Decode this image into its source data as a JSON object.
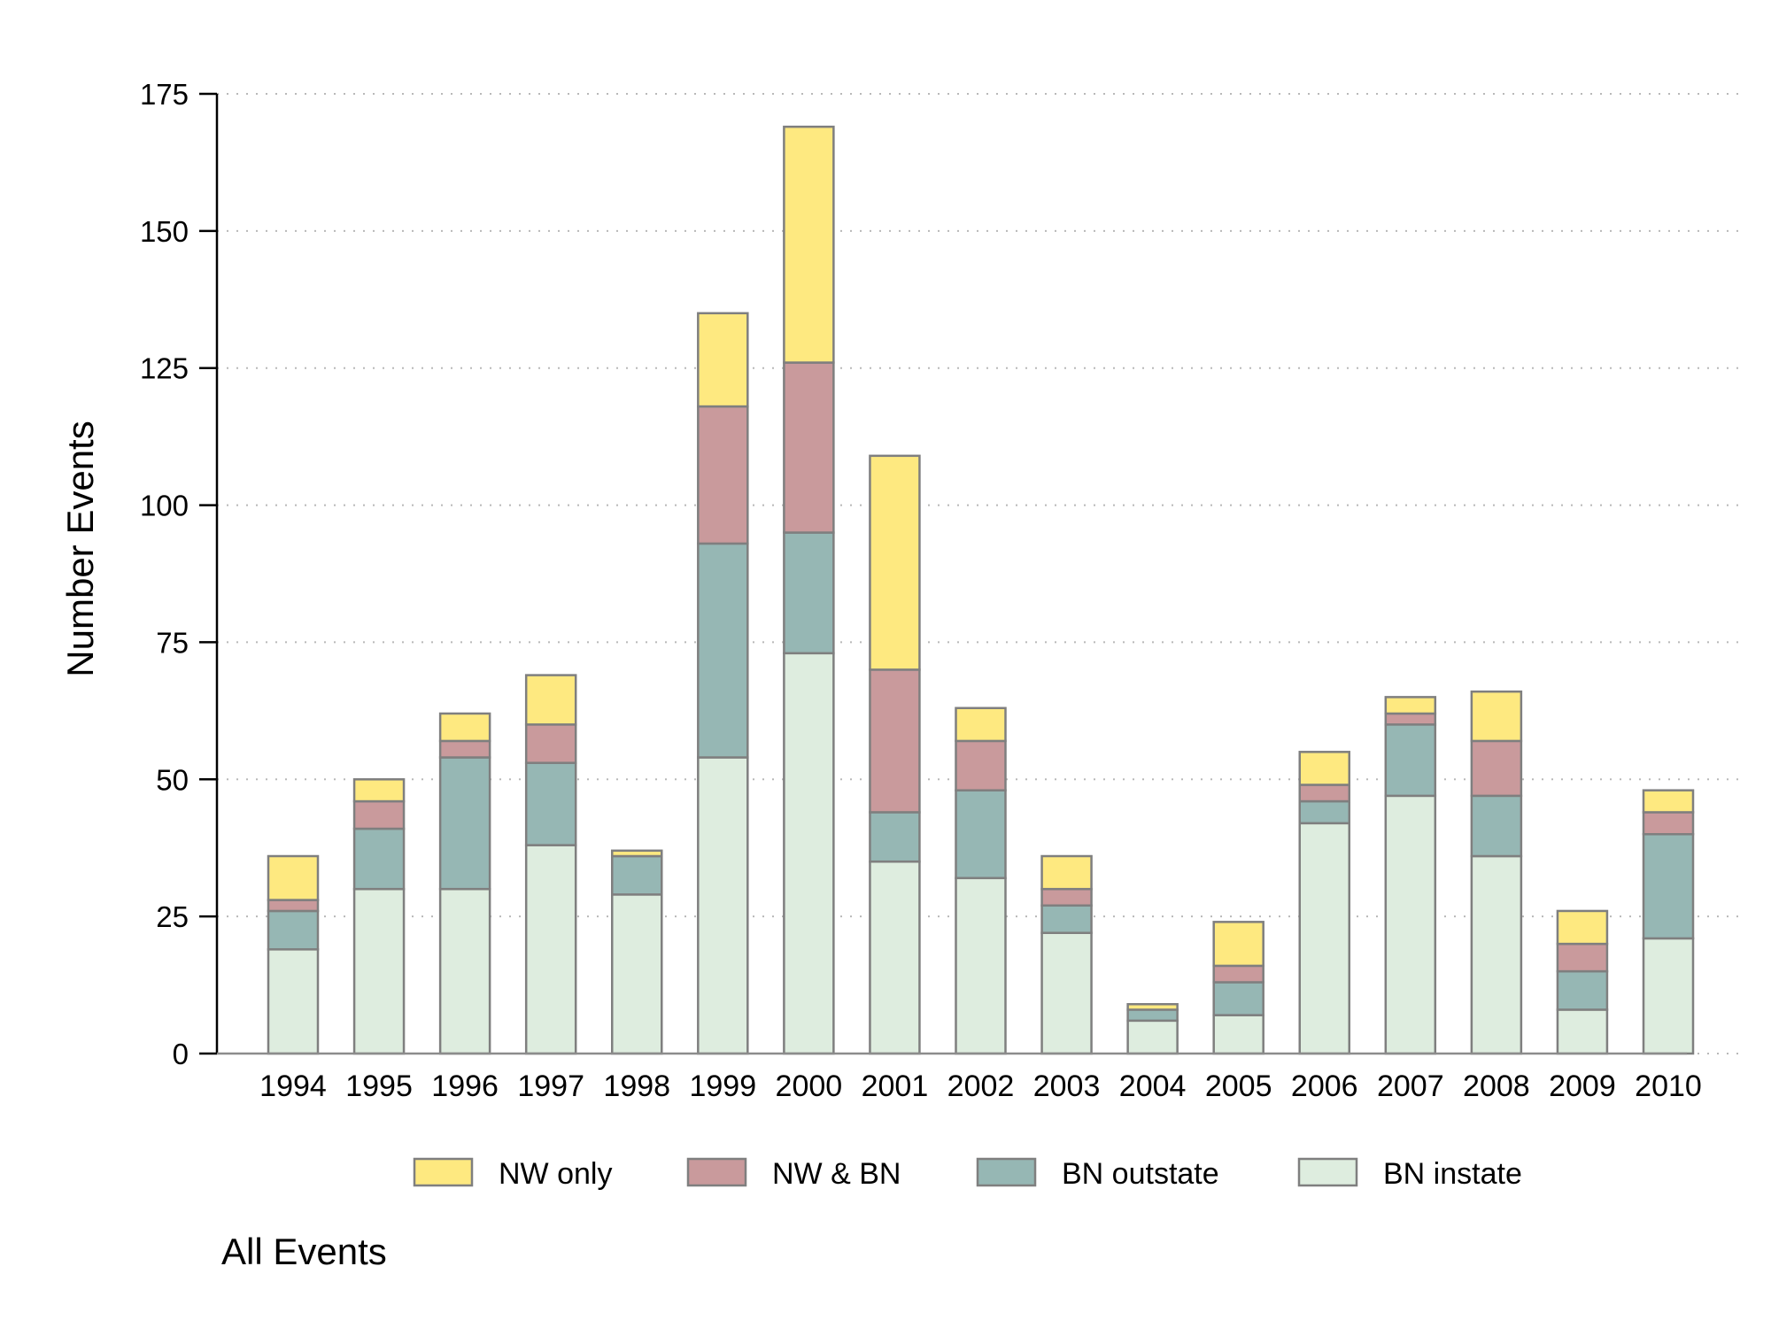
{
  "chart_data": {
    "type": "bar",
    "stacked": true,
    "ylabel": "Number Events",
    "xlabel": "",
    "ylim": [
      0,
      175
    ],
    "yticks": [
      0,
      25,
      50,
      75,
      100,
      125,
      150,
      175
    ],
    "grid": "horizontal-dotted",
    "legend_position": "bottom",
    "categories": [
      "1994",
      "1995",
      "1996",
      "1997",
      "1998",
      "1999",
      "2000",
      "2001",
      "2002",
      "2003",
      "2004",
      "2005",
      "2006",
      "2007",
      "2008",
      "2009",
      "2010"
    ],
    "series": [
      {
        "name": "BN instate",
        "color": "#deeddf",
        "values": [
          19,
          30,
          30,
          38,
          29,
          54,
          73,
          35,
          32,
          22,
          6,
          7,
          42,
          47,
          36,
          8,
          21
        ]
      },
      {
        "name": "BN outstate",
        "color": "#96b7b4",
        "values": [
          7,
          11,
          24,
          15,
          7,
          39,
          22,
          9,
          16,
          5,
          2,
          6,
          4,
          13,
          11,
          7,
          19
        ]
      },
      {
        "name": "NW & BN",
        "color": "#c99a9c",
        "values": [
          2,
          5,
          3,
          7,
          0,
          25,
          31,
          26,
          9,
          3,
          0,
          3,
          3,
          2,
          10,
          5,
          4
        ]
      },
      {
        "name": "NW only",
        "color": "#fee980",
        "values": [
          8,
          4,
          5,
          9,
          1,
          17,
          43,
          39,
          6,
          6,
          1,
          8,
          6,
          3,
          9,
          6,
          4
        ]
      }
    ],
    "legend_order": [
      "NW only",
      "NW & BN",
      "BN outstate",
      "BN instate"
    ]
  },
  "note": "All Events"
}
